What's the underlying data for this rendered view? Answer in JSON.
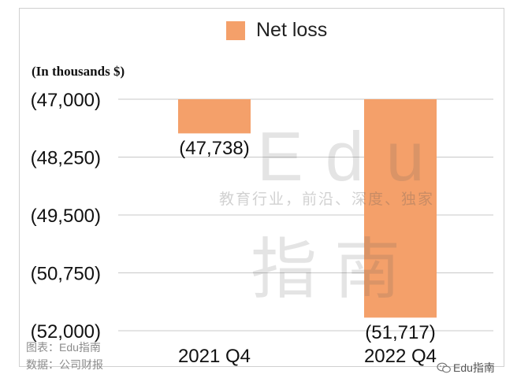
{
  "chart_data": {
    "type": "bar",
    "categories": [
      "2021 Q4",
      "2022 Q4"
    ],
    "series": [
      {
        "name": "Net loss",
        "values": [
          -47738,
          -51717
        ],
        "labels": [
          "(47,738)",
          "(51,717)"
        ],
        "color": "#F4A06A"
      }
    ],
    "ylabel": "(In thousands $)",
    "yticks": [
      -47000,
      -48250,
      -49500,
      -50750,
      -52000
    ],
    "ytick_labels": [
      "(47,000)",
      "(48,250)",
      "(49,500)",
      "(50,750)",
      "(52,000)"
    ],
    "ylim": [
      -52000,
      -47000
    ],
    "grid": true,
    "legend_position": "top-center"
  },
  "watermark": {
    "latin": "Edu",
    "tagline": "教育行业，前沿、深度、独家",
    "cjk": "指南"
  },
  "credits": {
    "chart_by": "图表：Edu指南",
    "source": "数据：公司财报"
  },
  "badge": {
    "text": "Edu指南",
    "icon": "wechat-icon"
  }
}
